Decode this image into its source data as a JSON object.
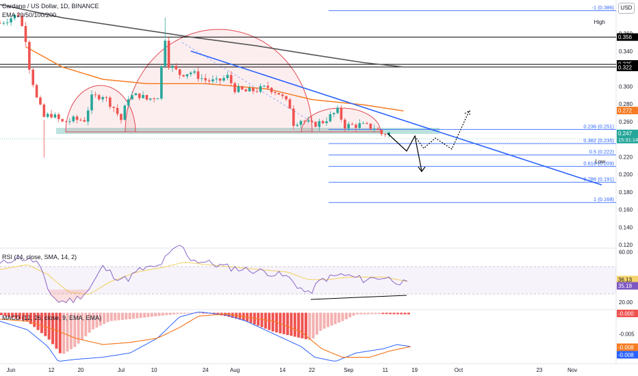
{
  "header": {
    "title": "Cardano / US Dollar, 1D, BINANCE",
    "ema_label": "EMA 20/50/100/200",
    "currency": "USD"
  },
  "price_axis": {
    "ticks": [
      "0.386",
      "0.360",
      "0.340",
      "0.320",
      "0.300",
      "0.280",
      "0.260",
      "0.240",
      "0.220",
      "0.200",
      "0.180",
      "0.160",
      "0.140",
      "0.120"
    ],
    "ylim": [
      0.12,
      0.395
    ],
    "badges": [
      {
        "value": "0.356",
        "role": "horizontal-line",
        "color": "#000000"
      },
      {
        "value": "0.325",
        "role": "horizontal-line",
        "color": "#000000"
      },
      {
        "value": "0.322",
        "role": "horizontal-line",
        "color": "#000000"
      },
      {
        "value": "0.272",
        "role": "ema-50",
        "color": "#f57c24"
      },
      {
        "value": "0.247",
        "role": "last-price",
        "color": "#26a69a",
        "sub": "15:31:14"
      }
    ]
  },
  "time_axis": {
    "labels": [
      "Jun",
      "12",
      "20",
      "Jul",
      "10",
      "24",
      "Aug",
      "14",
      "22",
      "Sep",
      "11",
      "19",
      "Oct",
      "23",
      "Nov"
    ]
  },
  "fibonacci": [
    {
      "label": "-1 (0.386)",
      "value": 0.386
    },
    {
      "label": "0.236 (0.251)",
      "value": 0.251
    },
    {
      "label": "0.382 (0.235)",
      "value": 0.235
    },
    {
      "label": "0.5 (0.222)",
      "value": 0.222
    },
    {
      "label": "0.618 (0.209)",
      "value": 0.209
    },
    {
      "label": "0.786 (0.191)",
      "value": 0.191
    },
    {
      "label": "1 (0.168)",
      "value": 0.168
    }
  ],
  "fib_markers": {
    "high": "High",
    "low": "Low"
  },
  "horizontal_levels": [
    0.356,
    0.325,
    0.322
  ],
  "support_zone": [
    0.253,
    0.259
  ],
  "rsi": {
    "title": "RSI (14, close, SMA, 14, 2)",
    "ticks": [
      "60.00",
      "20.00"
    ],
    "ylim": [
      15,
      62
    ],
    "badges": [
      {
        "value": "36.13",
        "color": "#f3d36b"
      },
      {
        "value": "35.18",
        "color": "#7e57c2"
      }
    ],
    "band": [
      30,
      50
    ]
  },
  "macd": {
    "title": "MACD (12, 26, close, 9, EMA, EMA)",
    "ticks": [
      "-0.000",
      "-0.005",
      "-0.010"
    ],
    "ylim": [
      -0.0117,
      0.0004
    ],
    "badges": [
      {
        "value": "-0.000",
        "color": "#ef5350"
      },
      {
        "value": "-0.008",
        "color": "#f57c24"
      },
      {
        "value": "-0.008",
        "color": "#2962ff"
      }
    ]
  },
  "colors": {
    "up": "#26a69a",
    "down": "#ef5350",
    "ema50": "#f57c24",
    "ema200": "#555555",
    "trendline": "#2962ff",
    "rsi_line": "#7e57c2",
    "rsi_sma": "#f3d36b",
    "fib": "#2962ff",
    "dome": "#e0454f",
    "zone": "#a7d8d3"
  },
  "chart_data": {
    "type": "candlestick",
    "timeframe": "1D",
    "symbol": "ADA/USD",
    "title": "Cardano / US Dollar, 1D, BINANCE",
    "x_range": [
      "2023-05-29",
      "2023-11-09"
    ],
    "close_series": [
      {
        "date": "2023-05-29",
        "close": 0.372
      },
      {
        "date": "2023-06-01",
        "close": 0.378
      },
      {
        "date": "2023-06-03",
        "close": 0.382
      },
      {
        "date": "2023-06-05",
        "close": 0.354
      },
      {
        "date": "2023-06-06",
        "close": 0.322
      },
      {
        "date": "2023-06-08",
        "close": 0.286
      },
      {
        "date": "2023-06-10",
        "close": 0.265
      },
      {
        "date": "2023-06-12",
        "close": 0.268
      },
      {
        "date": "2023-06-15",
        "close": 0.259
      },
      {
        "date": "2023-06-18",
        "close": 0.262
      },
      {
        "date": "2023-06-21",
        "close": 0.262
      },
      {
        "date": "2023-06-23",
        "close": 0.287
      },
      {
        "date": "2023-06-26",
        "close": 0.29
      },
      {
        "date": "2023-06-29",
        "close": 0.276
      },
      {
        "date": "2023-07-01",
        "close": 0.262
      },
      {
        "date": "2023-07-03",
        "close": 0.288
      },
      {
        "date": "2023-07-06",
        "close": 0.29
      },
      {
        "date": "2023-07-08",
        "close": 0.285
      },
      {
        "date": "2023-07-11",
        "close": 0.289
      },
      {
        "date": "2023-07-13",
        "close": 0.355
      },
      {
        "date": "2023-07-14",
        "close": 0.325
      },
      {
        "date": "2023-07-17",
        "close": 0.314
      },
      {
        "date": "2023-07-20",
        "close": 0.316
      },
      {
        "date": "2023-07-24",
        "close": 0.307
      },
      {
        "date": "2023-07-27",
        "close": 0.305
      },
      {
        "date": "2023-07-30",
        "close": 0.311
      },
      {
        "date": "2023-08-01",
        "close": 0.297
      },
      {
        "date": "2023-08-04",
        "close": 0.294
      },
      {
        "date": "2023-08-07",
        "close": 0.296
      },
      {
        "date": "2023-08-10",
        "close": 0.299
      },
      {
        "date": "2023-08-13",
        "close": 0.292
      },
      {
        "date": "2023-08-16",
        "close": 0.277
      },
      {
        "date": "2023-08-17",
        "close": 0.258
      },
      {
        "date": "2023-08-19",
        "close": 0.262
      },
      {
        "date": "2023-08-22",
        "close": 0.256
      },
      {
        "date": "2023-08-25",
        "close": 0.26
      },
      {
        "date": "2023-08-29",
        "close": 0.272
      },
      {
        "date": "2023-08-31",
        "close": 0.255
      },
      {
        "date": "2023-09-04",
        "close": 0.256
      },
      {
        "date": "2023-09-08",
        "close": 0.253
      },
      {
        "date": "2023-09-10",
        "close": 0.246
      },
      {
        "date": "2023-09-12",
        "close": 0.247
      }
    ],
    "ema50": [
      {
        "date": "2023-06-05",
        "value": 0.345
      },
      {
        "date": "2023-06-15",
        "value": 0.322
      },
      {
        "date": "2023-06-26",
        "value": 0.308
      },
      {
        "date": "2023-07-08",
        "value": 0.303
      },
      {
        "date": "2023-07-24",
        "value": 0.303
      },
      {
        "date": "2023-08-10",
        "value": 0.297
      },
      {
        "date": "2023-08-22",
        "value": 0.285
      },
      {
        "date": "2023-09-05",
        "value": 0.279
      },
      {
        "date": "2023-09-16",
        "value": 0.272
      }
    ],
    "ema200": [
      {
        "date": "2023-05-29",
        "value": 0.393
      },
      {
        "date": "2023-06-15",
        "value": 0.378
      },
      {
        "date": "2023-07-01",
        "value": 0.368
      },
      {
        "date": "2023-07-20",
        "value": 0.356
      },
      {
        "date": "2023-08-07",
        "value": 0.346
      },
      {
        "date": "2023-08-22",
        "value": 0.336
      },
      {
        "date": "2023-09-05",
        "value": 0.327
      },
      {
        "date": "2023-09-16",
        "value": 0.322
      }
    ],
    "trendline": {
      "from": {
        "date": "2023-07-20",
        "value": 0.34
      },
      "to": {
        "date": "2023-11-09",
        "value": 0.188
      }
    },
    "projection_bearish": [
      {
        "date": "2023-09-12",
        "value": 0.25
      },
      {
        "date": "2023-09-14",
        "value": 0.236
      },
      {
        "date": "2023-09-16",
        "value": 0.205
      }
    ],
    "projection_bullish": [
      {
        "date": "2023-09-14",
        "value": 0.251
      },
      {
        "date": "2023-09-17",
        "value": 0.23
      },
      {
        "date": "2023-09-21",
        "value": 0.24
      },
      {
        "date": "2023-09-24",
        "value": 0.23
      },
      {
        "date": "2023-09-29",
        "value": 0.277
      }
    ],
    "rsi_last": 35.18,
    "rsi_sma_last": 36.13,
    "macd_last": -0.008,
    "signal_last": -0.008,
    "histogram_last": -0.0
  }
}
